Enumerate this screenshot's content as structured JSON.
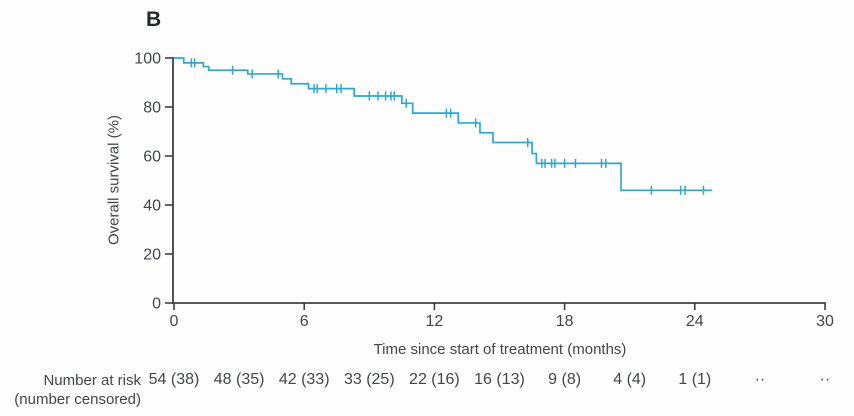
{
  "panel": {
    "label": "B"
  },
  "chart_data": {
    "type": "line",
    "subtype": "kaplan-meier-step-curve",
    "title": "",
    "xlabel": "Time since start of treatment (months)",
    "ylabel": "Overall survival (%)",
    "xlim": [
      0,
      30
    ],
    "ylim": [
      0,
      100
    ],
    "x_ticks": [
      0,
      6,
      12,
      18,
      24,
      30
    ],
    "y_ticks": [
      100,
      80,
      60,
      40,
      20,
      0
    ],
    "grid": false,
    "legend_position": "none",
    "line_color": "#2fa8cc",
    "axis_color": "#3d4045",
    "text_color": "#43464b",
    "series": [
      {
        "name": "Overall survival",
        "steps": [
          [
            0,
            100
          ],
          [
            0.45,
            98
          ],
          [
            1.35,
            96.5
          ],
          [
            1.6,
            95
          ],
          [
            3.4,
            93.5
          ],
          [
            5.0,
            91.5
          ],
          [
            5.4,
            89.5
          ],
          [
            6.2,
            87.5
          ],
          [
            8.3,
            84.5
          ],
          [
            10.5,
            81.5
          ],
          [
            11.0,
            77.5
          ],
          [
            13.1,
            73.5
          ],
          [
            14.1,
            69.5
          ],
          [
            14.7,
            65.5
          ],
          [
            16.5,
            61
          ],
          [
            16.7,
            57
          ],
          [
            20.6,
            46
          ]
        ],
        "end_time": 24.8,
        "censor_marks": [
          [
            0.8,
            98
          ],
          [
            0.95,
            98
          ],
          [
            2.7,
            95
          ],
          [
            3.6,
            93.5
          ],
          [
            4.8,
            93.5
          ],
          [
            6.45,
            87.5
          ],
          [
            6.6,
            87.5
          ],
          [
            7.0,
            87.5
          ],
          [
            7.5,
            87.5
          ],
          [
            7.7,
            87.5
          ],
          [
            9.0,
            84.5
          ],
          [
            9.4,
            84.5
          ],
          [
            9.75,
            84.5
          ],
          [
            10.0,
            84.5
          ],
          [
            10.15,
            84.5
          ],
          [
            10.7,
            81.5
          ],
          [
            12.55,
            77.5
          ],
          [
            12.75,
            77.5
          ],
          [
            13.9,
            73.5
          ],
          [
            16.3,
            65.5
          ],
          [
            16.95,
            57
          ],
          [
            17.1,
            57
          ],
          [
            17.4,
            57
          ],
          [
            17.55,
            57
          ],
          [
            18.0,
            57
          ],
          [
            18.5,
            57
          ],
          [
            19.7,
            57
          ],
          [
            19.9,
            57
          ],
          [
            22.0,
            46
          ],
          [
            23.35,
            46
          ],
          [
            23.55,
            46
          ],
          [
            24.4,
            46
          ]
        ]
      }
    ]
  },
  "risk_table": {
    "label_line1": "Number at risk",
    "label_line2": "(number censored)",
    "times": [
      0,
      3,
      6,
      9,
      12,
      15,
      18,
      21,
      24,
      27,
      30
    ],
    "values": [
      "54 (38)",
      "48 (35)",
      "42 (33)",
      "33 (25)",
      "22 (16)",
      "16 (13)",
      "9 (8)",
      "4 (4)",
      "1 (1)",
      "··",
      "··"
    ]
  }
}
